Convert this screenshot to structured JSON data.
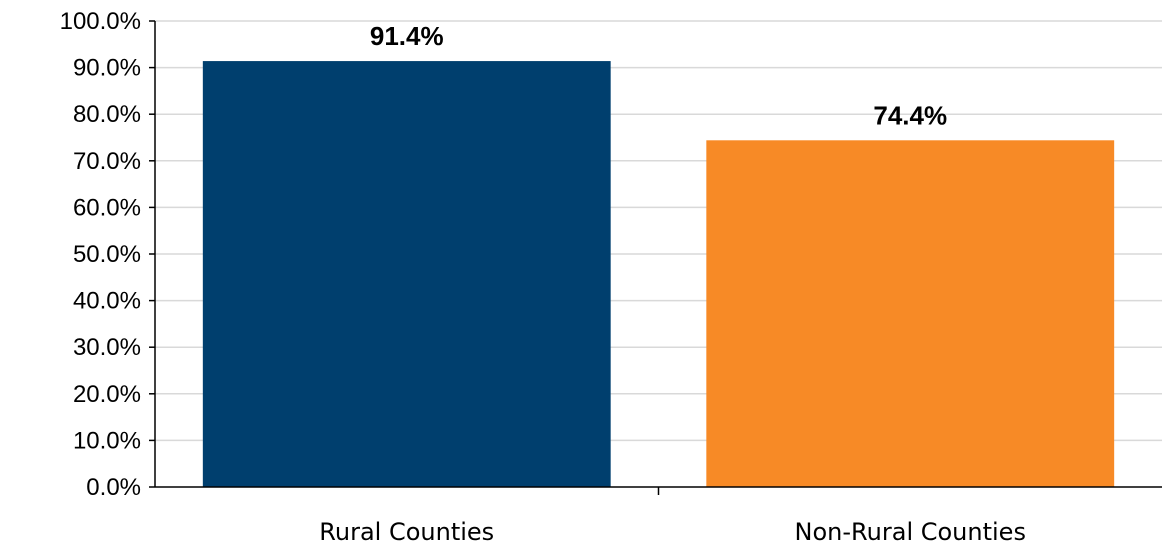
{
  "chart_data": {
    "type": "bar",
    "title": "",
    "xlabel": "",
    "ylabel": "",
    "categories": [
      "Rural Counties",
      "Non-Rural Counties"
    ],
    "values": [
      91.4,
      74.4
    ],
    "data_labels": [
      "91.4%",
      "74.4%"
    ],
    "colors": [
      "#003f6e",
      "#f78a26"
    ],
    "ylim": [
      0,
      100
    ],
    "yticks": [
      0,
      10,
      20,
      30,
      40,
      50,
      60,
      70,
      80,
      90,
      100
    ],
    "ytick_labels": [
      "0.0%",
      "10.0%",
      "20.0%",
      "30.0%",
      "40.0%",
      "50.0%",
      "60.0%",
      "70.0%",
      "80.0%",
      "90.0%",
      "100.0%"
    ],
    "grid": true,
    "grid_color": "#d9d9d9",
    "legend": "none"
  }
}
